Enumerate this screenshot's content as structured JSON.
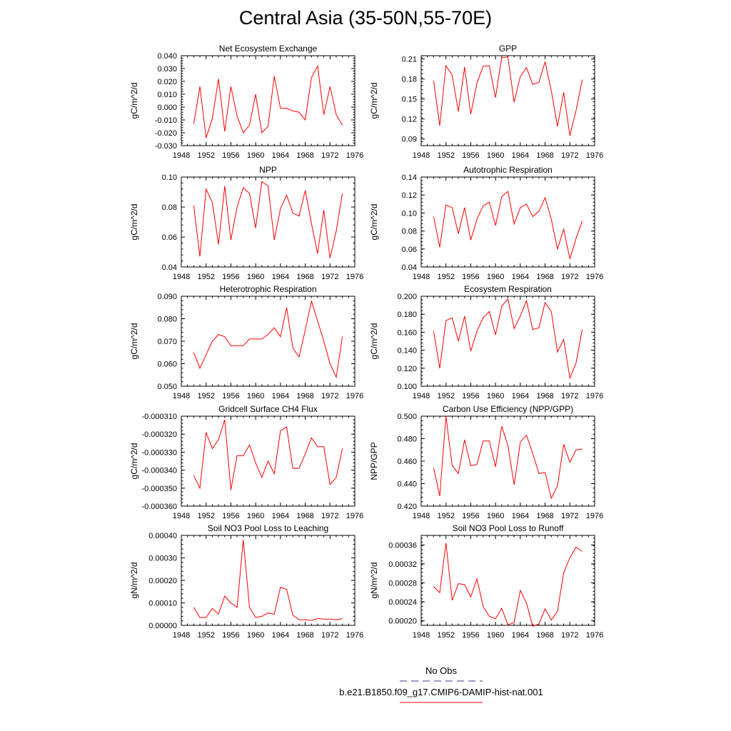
{
  "title": "Central Asia (35-50N,55-70E)",
  "line_color": "#ff0000",
  "legend": {
    "obs_label": "No Obs",
    "obs_color": "#3a3aa0",
    "run_label": "b.e21.B1850.f09_g17.CMIP6-DAMIP-hist-nat.001",
    "run_color": "#ff0000"
  },
  "chart_data": [
    {
      "type": "line",
      "title": "Net Ecosystem Exchange",
      "xlabel": "",
      "ylabel": "gC/m^2/d",
      "xlim": [
        1948,
        1976
      ],
      "xticks": [
        "1948",
        "1952",
        "1956",
        "1960",
        "1964",
        "1968",
        "1972",
        "1976"
      ],
      "ylim": [
        -0.03,
        0.04
      ],
      "yticks": [
        "-0.030",
        "-0.020",
        "-0.010",
        "0.000",
        "0.010",
        "0.020",
        "0.030",
        "0.040"
      ],
      "x": [
        1950,
        1951,
        1952,
        1953,
        1954,
        1955,
        1956,
        1957,
        1958,
        1959,
        1960,
        1961,
        1962,
        1963,
        1964,
        1965,
        1966,
        1967,
        1968,
        1969,
        1970,
        1971,
        1972,
        1973,
        1974
      ],
      "series": [
        {
          "values": [
            -0.013,
            0.016,
            -0.024,
            -0.009,
            0.022,
            -0.019,
            0.016,
            -0.007,
            -0.02,
            -0.014,
            0.01,
            -0.02,
            -0.015,
            0.024,
            -0.001,
            -0.001,
            -0.003,
            -0.004,
            -0.01,
            0.023,
            0.032,
            -0.006,
            0.016,
            -0.006,
            -0.014
          ]
        }
      ]
    },
    {
      "type": "line",
      "title": "GPP",
      "xlabel": "",
      "ylabel": "gC/m^2/d",
      "xlim": [
        1948,
        1976
      ],
      "xticks": [
        "1948",
        "1952",
        "1956",
        "1960",
        "1964",
        "1968",
        "1972",
        "1976"
      ],
      "ylim": [
        0.08,
        0.215
      ],
      "yticks": [
        "0.09",
        "0.12",
        "0.15",
        "0.18",
        "0.21"
      ],
      "ytick_values": [
        0.09,
        0.12,
        0.15,
        0.18,
        0.21
      ],
      "x": [
        1950,
        1951,
        1952,
        1953,
        1954,
        1955,
        1956,
        1957,
        1958,
        1959,
        1960,
        1961,
        1962,
        1963,
        1964,
        1965,
        1966,
        1967,
        1968,
        1969,
        1970,
        1971,
        1972,
        1973,
        1974
      ],
      "series": [
        {
          "values": [
            0.177,
            0.11,
            0.2,
            0.186,
            0.131,
            0.198,
            0.127,
            0.174,
            0.199,
            0.2,
            0.152,
            0.212,
            0.213,
            0.145,
            0.184,
            0.197,
            0.172,
            0.175,
            0.206,
            0.162,
            0.109,
            0.16,
            0.095,
            0.133,
            0.179
          ]
        }
      ]
    },
    {
      "type": "line",
      "title": "NPP",
      "xlabel": "",
      "ylabel": "gC/m^2/d",
      "xlim": [
        1948,
        1976
      ],
      "xticks": [
        "1948",
        "1952",
        "1956",
        "1960",
        "1964",
        "1968",
        "1972",
        "1976"
      ],
      "ylim": [
        0.04,
        0.1
      ],
      "yticks": [
        "0.04",
        "0.06",
        "0.08",
        "0.10"
      ],
      "ytick_values": [
        0.04,
        0.06,
        0.08,
        0.1
      ],
      "x": [
        1950,
        1951,
        1952,
        1953,
        1954,
        1955,
        1956,
        1957,
        1958,
        1959,
        1960,
        1961,
        1962,
        1963,
        1964,
        1965,
        1966,
        1967,
        1968,
        1969,
        1970,
        1971,
        1972,
        1973,
        1974
      ],
      "series": [
        {
          "values": [
            0.081,
            0.047,
            0.092,
            0.083,
            0.055,
            0.094,
            0.058,
            0.08,
            0.093,
            0.089,
            0.066,
            0.097,
            0.094,
            0.058,
            0.079,
            0.088,
            0.076,
            0.074,
            0.091,
            0.069,
            0.049,
            0.078,
            0.046,
            0.064,
            0.089
          ]
        }
      ]
    },
    {
      "type": "line",
      "title": "Autotrophic Respiration",
      "xlabel": "",
      "ylabel": "gC/m^2/d",
      "xlim": [
        1948,
        1976
      ],
      "xticks": [
        "1948",
        "1952",
        "1956",
        "1960",
        "1964",
        "1968",
        "1972",
        "1976"
      ],
      "ylim": [
        0.04,
        0.14
      ],
      "yticks": [
        "0.04",
        "0.06",
        "0.08",
        "0.10",
        "0.12",
        "0.14"
      ],
      "ytick_values": [
        0.04,
        0.06,
        0.08,
        0.1,
        0.12,
        0.14
      ],
      "x": [
        1950,
        1951,
        1952,
        1953,
        1954,
        1955,
        1956,
        1957,
        1958,
        1959,
        1960,
        1961,
        1962,
        1963,
        1964,
        1965,
        1966,
        1967,
        1968,
        1969,
        1970,
        1971,
        1972,
        1973,
        1974
      ],
      "series": [
        {
          "values": [
            0.096,
            0.062,
            0.109,
            0.106,
            0.077,
            0.106,
            0.07,
            0.093,
            0.108,
            0.112,
            0.086,
            0.118,
            0.124,
            0.088,
            0.106,
            0.11,
            0.096,
            0.102,
            0.117,
            0.093,
            0.06,
            0.082,
            0.049,
            0.072,
            0.091
          ]
        }
      ]
    },
    {
      "type": "line",
      "title": "Heterotrophic Respiration",
      "xlabel": "",
      "ylabel": "gC/m^2/d",
      "xlim": [
        1948,
        1976
      ],
      "xticks": [
        "1948",
        "1952",
        "1956",
        "1960",
        "1964",
        "1968",
        "1972",
        "1976"
      ],
      "ylim": [
        0.05,
        0.09
      ],
      "yticks": [
        "0.050",
        "0.060",
        "0.070",
        "0.080",
        "0.090"
      ],
      "ytick_values": [
        0.05,
        0.06,
        0.07,
        0.08,
        0.09
      ],
      "x": [
        1950,
        1951,
        1952,
        1953,
        1954,
        1955,
        1956,
        1957,
        1958,
        1959,
        1960,
        1961,
        1962,
        1963,
        1964,
        1965,
        1966,
        1967,
        1968,
        1969,
        1970,
        1971,
        1972,
        1973,
        1974
      ],
      "series": [
        {
          "values": [
            0.065,
            0.058,
            0.064,
            0.07,
            0.073,
            0.072,
            0.068,
            0.068,
            0.068,
            0.071,
            0.071,
            0.071,
            0.073,
            0.076,
            0.072,
            0.085,
            0.067,
            0.063,
            0.075,
            0.088,
            0.079,
            0.07,
            0.06,
            0.054,
            0.072
          ]
        }
      ]
    },
    {
      "type": "line",
      "title": "Ecosystem Respiration",
      "xlabel": "",
      "ylabel": "gC/m^2/d",
      "xlim": [
        1948,
        1976
      ],
      "xticks": [
        "1948",
        "1952",
        "1956",
        "1960",
        "1964",
        "1968",
        "1972",
        "1976"
      ],
      "ylim": [
        0.1,
        0.2
      ],
      "yticks": [
        "0.100",
        "0.120",
        "0.140",
        "0.160",
        "0.180",
        "0.200"
      ],
      "ytick_values": [
        0.1,
        0.12,
        0.14,
        0.16,
        0.18,
        0.2
      ],
      "x": [
        1950,
        1951,
        1952,
        1953,
        1954,
        1955,
        1956,
        1957,
        1958,
        1959,
        1960,
        1961,
        1962,
        1963,
        1964,
        1965,
        1966,
        1967,
        1968,
        1969,
        1970,
        1971,
        1972,
        1973,
        1974
      ],
      "series": [
        {
          "values": [
            0.161,
            0.12,
            0.173,
            0.176,
            0.15,
            0.178,
            0.139,
            0.161,
            0.176,
            0.183,
            0.157,
            0.189,
            0.197,
            0.164,
            0.178,
            0.195,
            0.163,
            0.165,
            0.193,
            0.183,
            0.138,
            0.152,
            0.109,
            0.126,
            0.163
          ]
        }
      ]
    },
    {
      "type": "line",
      "title": "Gridcell Surface CH4 Flux",
      "xlabel": "",
      "ylabel": "gC/m^2/d",
      "xlim": [
        1948,
        1976
      ],
      "xticks": [
        "1948",
        "1952",
        "1956",
        "1960",
        "1964",
        "1968",
        "1972",
        "1976"
      ],
      "ylim": [
        -0.00036,
        -0.00031
      ],
      "yticks": [
        "-0.000360",
        "-0.000350",
        "-0.000340",
        "-0.000330",
        "-0.000320",
        "-0.000310"
      ],
      "ytick_values": [
        -0.00036,
        -0.00035,
        -0.00034,
        -0.00033,
        -0.00032,
        -0.00031
      ],
      "x": [
        1950,
        1951,
        1952,
        1953,
        1954,
        1955,
        1956,
        1957,
        1958,
        1959,
        1960,
        1961,
        1962,
        1963,
        1964,
        1965,
        1966,
        1967,
        1968,
        1969,
        1970,
        1971,
        1972,
        1973,
        1974
      ],
      "series": [
        {
          "values": [
            -0.000343,
            -0.00035,
            -0.000319,
            -0.000328,
            -0.000323,
            -0.000312,
            -0.000351,
            -0.000332,
            -0.000332,
            -0.000326,
            -0.000336,
            -0.000344,
            -0.000335,
            -0.000342,
            -0.000318,
            -0.000316,
            -0.000339,
            -0.000339,
            -0.000331,
            -0.000322,
            -0.000327,
            -0.000327,
            -0.000348,
            -0.000344,
            -0.000328
          ]
        }
      ]
    },
    {
      "type": "line",
      "title": "Carbon Use Efficiency (NPP/GPP)",
      "xlabel": "",
      "ylabel": "NPP/GPP",
      "xlim": [
        1948,
        1976
      ],
      "xticks": [
        "1948",
        "1952",
        "1956",
        "1960",
        "1964",
        "1968",
        "1972",
        "1976"
      ],
      "ylim": [
        0.42,
        0.5
      ],
      "yticks": [
        "0.420",
        "0.440",
        "0.460",
        "0.480",
        "0.500"
      ],
      "ytick_values": [
        0.42,
        0.44,
        0.46,
        0.48,
        0.5
      ],
      "x": [
        1950,
        1951,
        1952,
        1953,
        1954,
        1955,
        1956,
        1957,
        1958,
        1959,
        1960,
        1961,
        1962,
        1963,
        1964,
        1965,
        1966,
        1967,
        1968,
        1969,
        1970,
        1971,
        1972,
        1973,
        1974
      ],
      "series": [
        {
          "values": [
            0.454,
            0.429,
            0.5,
            0.456,
            0.449,
            0.479,
            0.456,
            0.457,
            0.478,
            0.478,
            0.455,
            0.491,
            0.474,
            0.439,
            0.477,
            0.483,
            0.467,
            0.449,
            0.45,
            0.427,
            0.438,
            0.475,
            0.459,
            0.47,
            0.471
          ]
        }
      ]
    },
    {
      "type": "line",
      "title": "Soil NO3 Pool Loss to Leaching",
      "xlabel": "",
      "ylabel": "gN/m^2/d",
      "xlim": [
        1948,
        1976
      ],
      "xticks": [
        "1948",
        "1952",
        "1956",
        "1960",
        "1964",
        "1968",
        "1972",
        "1976"
      ],
      "ylim": [
        0.0,
        0.0004
      ],
      "yticks": [
        "0.00000",
        "0.00010",
        "0.00020",
        "0.00030",
        "0.00040"
      ],
      "ytick_values": [
        0,
        0.0001,
        0.0002,
        0.0003,
        0.0004
      ],
      "x": [
        1950,
        1951,
        1952,
        1953,
        1954,
        1955,
        1956,
        1957,
        1958,
        1959,
        1960,
        1961,
        1962,
        1963,
        1964,
        1965,
        1966,
        1967,
        1968,
        1969,
        1970,
        1971,
        1972,
        1973,
        1974
      ],
      "series": [
        {
          "values": [
            8e-05,
            3.5e-05,
            3.5e-05,
            7.5e-05,
            5e-05,
            0.00013,
            0.0001,
            8e-05,
            0.00038,
            8e-05,
            3.5e-05,
            4e-05,
            5.5e-05,
            5e-05,
            0.00017,
            0.00016,
            4.5e-05,
            2.5e-05,
            2.5e-05,
            2.2e-05,
            3e-05,
            2.8e-05,
            2.8e-05,
            2.4e-05,
            3e-05
          ]
        }
      ]
    },
    {
      "type": "line",
      "title": "Soil NO3 Pool Loss to Runoff",
      "xlabel": "",
      "ylabel": "gN/m^2/d",
      "xlim": [
        1948,
        1976
      ],
      "xticks": [
        "1948",
        "1952",
        "1956",
        "1960",
        "1964",
        "1968",
        "1972",
        "1976"
      ],
      "ylim": [
        0.00019,
        0.00038
      ],
      "yticks": [
        "0.00020",
        "0.00024",
        "0.00028",
        "0.00032",
        "0.00036"
      ],
      "ytick_values": [
        0.0002,
        0.00024,
        0.00028,
        0.00032,
        0.00036
      ],
      "x": [
        1950,
        1951,
        1952,
        1953,
        1954,
        1955,
        1956,
        1957,
        1958,
        1959,
        1960,
        1961,
        1962,
        1963,
        1964,
        1965,
        1966,
        1967,
        1968,
        1969,
        1970,
        1971,
        1972,
        1973,
        1974
      ],
      "series": [
        {
          "values": [
            0.000272,
            0.000259,
            0.000364,
            0.000243,
            0.000278,
            0.000276,
            0.00025,
            0.000288,
            0.00023,
            0.000209,
            0.000204,
            0.000226,
            0.000191,
            0.000196,
            0.000264,
            0.000237,
            0.000188,
            0.000193,
            0.000225,
            0.000201,
            0.00022,
            0.000301,
            0.000333,
            0.000355,
            0.000346
          ]
        }
      ]
    }
  ]
}
